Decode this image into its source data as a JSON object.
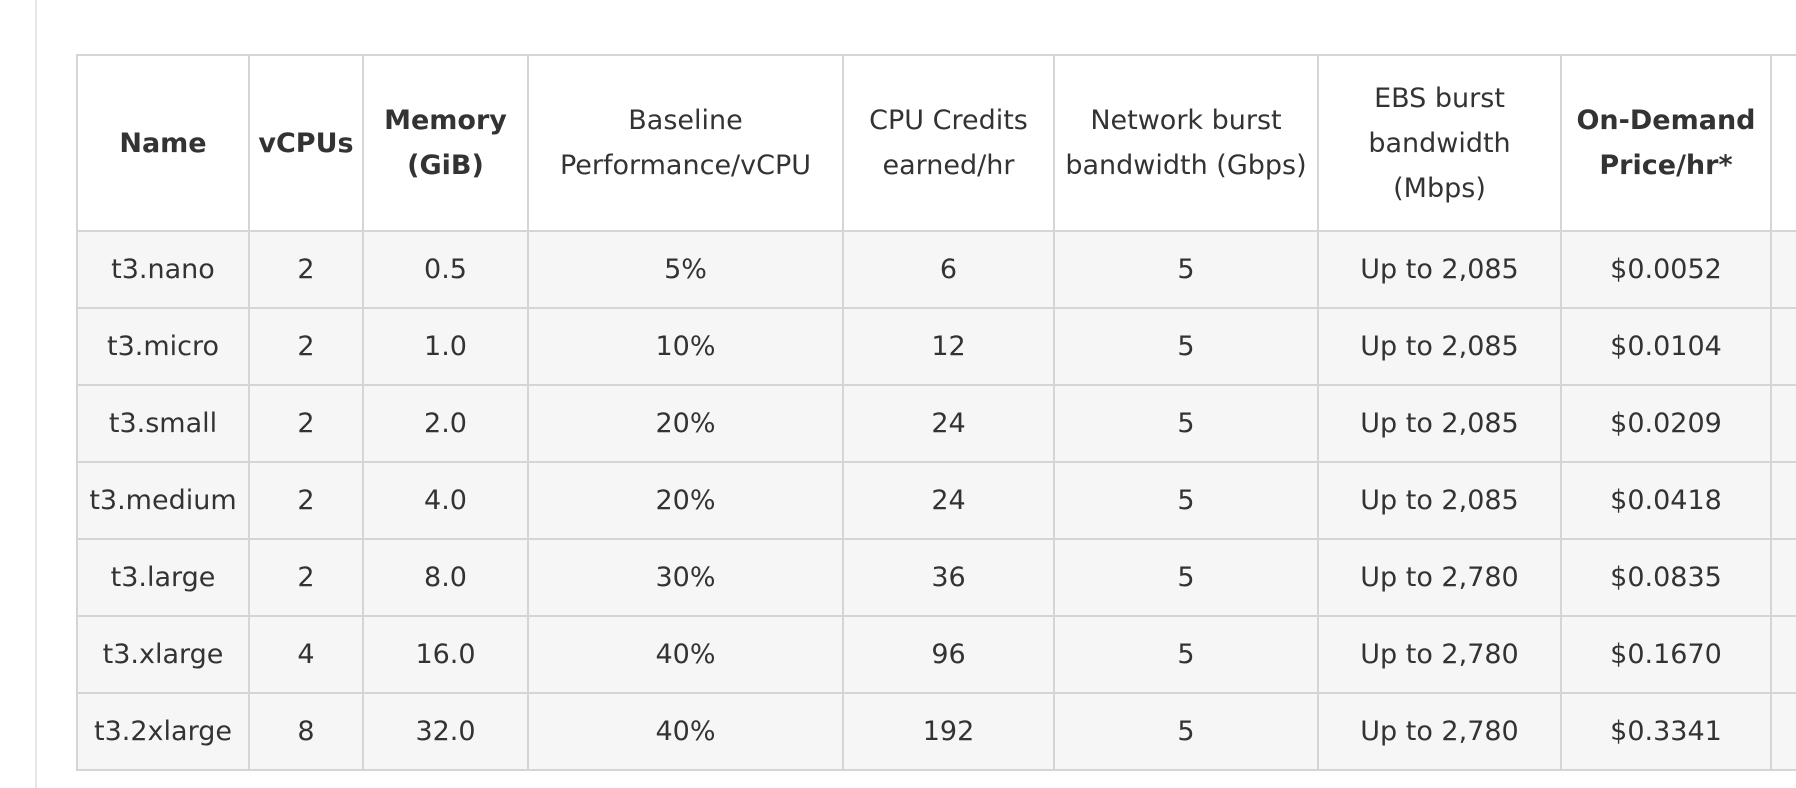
{
  "table": {
    "headers": [
      "Name",
      "vCPUs",
      "Memory (GiB)",
      "Baseline Performance/vCPU",
      "CPU Credits earned/hr",
      "Network burst bandwidth (Gbps)",
      "EBS burst bandwidth (Mbps)",
      "On-Demand Price/hr*"
    ],
    "rows": [
      [
        "t3.nano",
        "2",
        "0.5",
        "5%",
        "6",
        "5",
        "Up to 2,085",
        "$0.0052"
      ],
      [
        "t3.micro",
        "2",
        "1.0",
        "10%",
        "12",
        "5",
        "Up to 2,085",
        "$0.0104"
      ],
      [
        "t3.small",
        "2",
        "2.0",
        "20%",
        "24",
        "5",
        "Up to 2,085",
        "$0.0209"
      ],
      [
        "t3.medium",
        "2",
        "4.0",
        "20%",
        "24",
        "5",
        "Up to 2,085",
        "$0.0418"
      ],
      [
        "t3.large",
        "2",
        "8.0",
        "30%",
        "36",
        "5",
        "Up to 2,780",
        "$0.0835"
      ],
      [
        "t3.xlarge",
        "4",
        "16.0",
        "40%",
        "96",
        "5",
        "Up to 2,780",
        "$0.1670"
      ],
      [
        "t3.2xlarge",
        "8",
        "32.0",
        "40%",
        "192",
        "5",
        "Up to 2,780",
        "$0.3341"
      ]
    ]
  }
}
